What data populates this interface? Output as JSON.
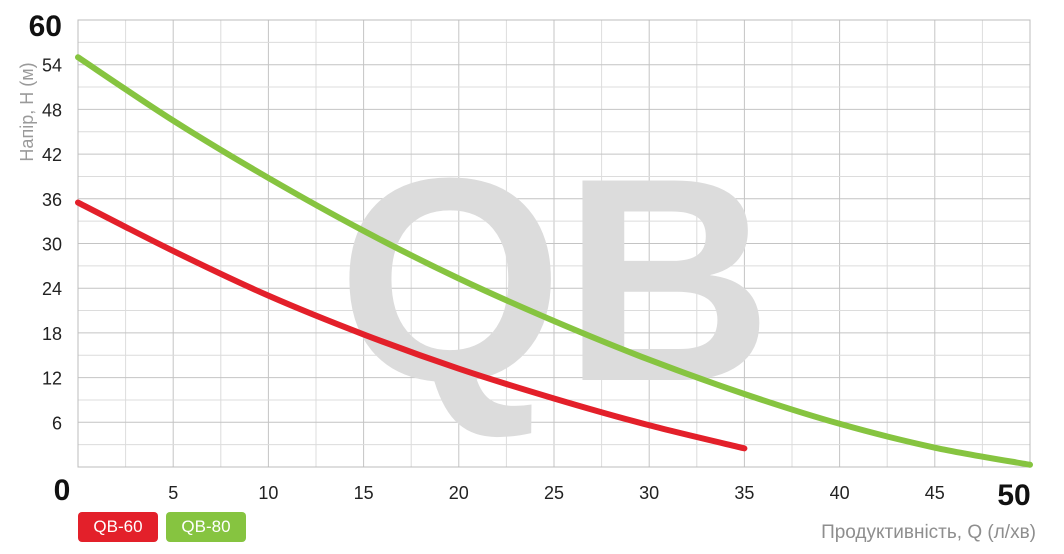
{
  "chart_data": {
    "type": "line",
    "watermark": "QB",
    "xlabel": "Продуктивність, Q (л/хв)",
    "ylabel": "Напір, H (м)",
    "xlim": [
      0,
      50
    ],
    "ylim": [
      0,
      60
    ],
    "grid": true,
    "legend_position": "bottom-left",
    "x_ticks": [
      "5",
      "10",
      "15",
      "20",
      "25",
      "30",
      "35",
      "40",
      "45"
    ],
    "x_tick_values": [
      5,
      10,
      15,
      20,
      25,
      30,
      35,
      40,
      45
    ],
    "y_ticks": [
      "6",
      "12",
      "18",
      "24",
      "30",
      "36",
      "42",
      "48",
      "54"
    ],
    "y_tick_values": [
      6,
      12,
      18,
      24,
      30,
      36,
      42,
      48,
      54
    ],
    "origin_label": "0",
    "x_max_label": "50",
    "y_max_label": "60",
    "series": [
      {
        "name": "QB-60",
        "color": "#e3202a",
        "x": [
          0,
          5,
          10,
          15,
          20,
          25,
          30,
          35
        ],
        "y": [
          35.5,
          29,
          23,
          17.8,
          13.2,
          9.2,
          5.6,
          2.5
        ]
      },
      {
        "name": "QB-80",
        "color": "#86c440",
        "x": [
          0,
          5,
          10,
          15,
          20,
          25,
          30,
          35,
          40,
          45,
          50
        ],
        "y": [
          55,
          46.5,
          38.8,
          31.7,
          25.3,
          19.6,
          14.4,
          9.8,
          5.8,
          2.6,
          0.3
        ]
      }
    ]
  }
}
